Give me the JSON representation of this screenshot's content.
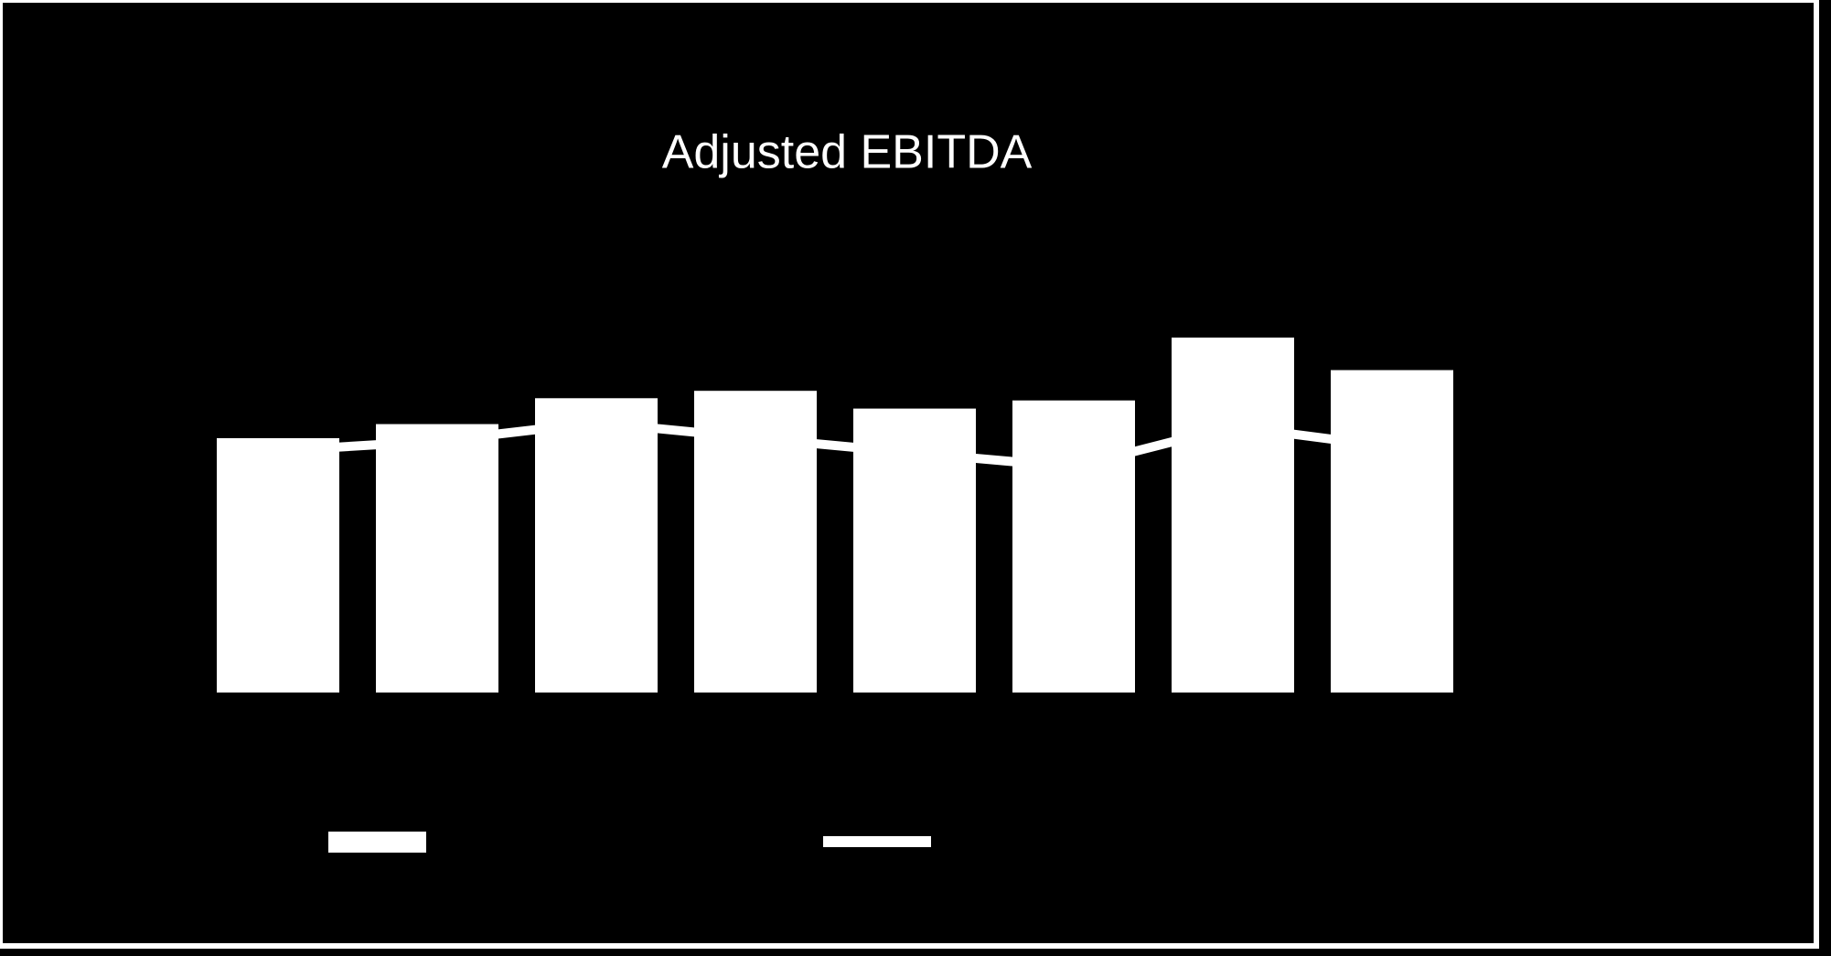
{
  "chart_data": {
    "type": "bar_line",
    "title": "Adjusted EBITDA",
    "series": [
      {
        "color": "#ffffff",
        "values": [
          3.44,
          3.63,
          3.98,
          4.08,
          3.84,
          3.95,
          4.8,
          4.36
        ]
      },
      {
        "color": "#ffffff",
        "axis": "y2",
        "values": [
          3.27,
          3.4,
          3.65,
          3.44,
          3.24,
          3.05,
          3.6,
          3.32
        ]
      }
    ],
    "ylim": [
      0,
      6
    ],
    "y2lim": [
      0,
      6
    ]
  }
}
